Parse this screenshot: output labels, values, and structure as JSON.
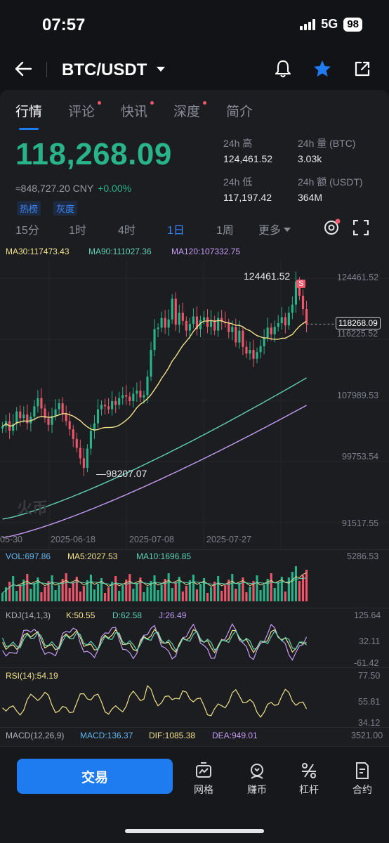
{
  "status_bar": {
    "time": "07:57",
    "network": "5G",
    "battery": "98"
  },
  "nav": {
    "pair": "BTC/USDT"
  },
  "tabs": [
    {
      "label": "行情",
      "active": true,
      "dot": false
    },
    {
      "label": "评论",
      "active": false,
      "dot": true
    },
    {
      "label": "快讯",
      "active": false,
      "dot": true
    },
    {
      "label": "深度",
      "active": false,
      "dot": true
    },
    {
      "label": "简介",
      "active": false,
      "dot": false
    }
  ],
  "ticker": {
    "price": "118,268.09",
    "cny": "≈848,727.20 CNY",
    "change": "+0.00%",
    "badges": [
      "热榜",
      "灰度"
    ],
    "high_label": "24h 高",
    "high": "124,461.52",
    "low_label": "24h 低",
    "low": "117,197.42",
    "vol_label": "24h 量 (BTC)",
    "vol": "3.03k",
    "amt_label": "24h 额 (USDT)",
    "amt": "364M"
  },
  "timeframes": {
    "items": [
      "15分",
      "1时",
      "4时",
      "1日",
      "1周",
      "更多"
    ],
    "active": "1日"
  },
  "colors": {
    "up": "#29b389",
    "down": "#f0556a",
    "accent": "#1f7cf0",
    "ma30": "#f1e08a",
    "ma90": "#5fd1b5",
    "ma120": "#c59bf5"
  },
  "indicators": {
    "ma30": "MA30:117473.43",
    "ma90": "MA90:111027.36",
    "ma120": "MA120:107332.75",
    "vol": "VOL:697.86",
    "vol_ma5": "MA5:2027.53",
    "vol_ma10": "MA10:1696.85",
    "kdj": "KDJ(14,1,3)",
    "kdj_k": "K:50.55",
    "kdj_d": "D:62.58",
    "kdj_j": "J:26.49",
    "rsi": "RSI(14):54.19",
    "macd": "MACD(12,26,9)",
    "macd_v": "MACD:136.37",
    "macd_dif": "DIF:1085.38",
    "macd_dea": "DEA:949.01"
  },
  "chart_data": {
    "type": "candlestick",
    "y_ticks": [
      "124461.52",
      "116225.52",
      "107989.53",
      "99753.54",
      "91517.55"
    ],
    "ylim": [
      91517.55,
      124461.52
    ],
    "x_ticks": [
      "05-30",
      "2025-06-18",
      "2025-07-08",
      "2025-07-27"
    ],
    "last_price": "118268.09",
    "high_marker": "124461.52",
    "low_marker": "98207.07",
    "sell_marker": "S",
    "ma30_start": 102800,
    "ma30_end": 117473.43,
    "ma90_start": 92000,
    "ma90_end": 111027.36,
    "ma120_start": 89500,
    "ma120_end": 107332.75,
    "closes": [
      104500,
      105200,
      103900,
      104800,
      106500,
      105600,
      106100,
      104900,
      105800,
      107200,
      108300,
      106900,
      105600,
      104700,
      105900,
      106800,
      107600,
      106200,
      105200,
      104100,
      102800,
      101600,
      100200,
      98900,
      101500,
      103900,
      104900,
      106800,
      107400,
      107200,
      106800,
      107900,
      107400,
      108300,
      108700,
      108500,
      107900,
      108900,
      109300,
      108400,
      108700,
      111200,
      114800,
      117600,
      117800,
      119100,
      117800,
      118900,
      121700,
      118200,
      119800,
      118700,
      117400,
      118300,
      119300,
      117600,
      118800,
      119200,
      117900,
      118800,
      117400,
      119100,
      118600,
      118400,
      117200,
      117900,
      115800,
      117400,
      115200,
      114300,
      114800,
      113600,
      114500,
      115300,
      116500,
      117800,
      116900,
      117900,
      118400,
      119200,
      118100,
      119800,
      120900,
      124000,
      122100,
      120300,
      118268
    ]
  },
  "sub_axes": {
    "vol": [
      "5286.53"
    ],
    "kdj": [
      "125.64",
      "32.11",
      "-61.42"
    ],
    "rsi": [
      "77.50",
      "55.81",
      "34.12"
    ],
    "macd": [
      "3521.00"
    ]
  },
  "bottom_bar": {
    "trade": "交易",
    "items": [
      {
        "label": "网格",
        "icon": "grid-bot-icon"
      },
      {
        "label": "赚币",
        "icon": "earn-icon"
      },
      {
        "label": "杠杆",
        "icon": "leverage-icon"
      },
      {
        "label": "合约",
        "icon": "contract-icon"
      }
    ]
  },
  "watermark": "火币"
}
